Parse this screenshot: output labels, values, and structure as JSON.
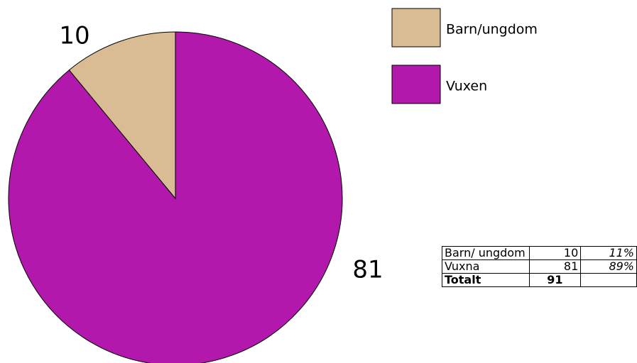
{
  "chart_data": {
    "type": "pie",
    "categories": [
      "Barn/ungdom",
      "Vuxen"
    ],
    "values": [
      10,
      81
    ],
    "colors": [
      "#d9bc94",
      "#b118ab"
    ]
  },
  "table": {
    "rows": [
      [
        "Barn/ ungdom",
        10,
        "11%"
      ],
      [
        "Vuxna",
        81,
        "89%"
      ],
      [
        "Totalt",
        91
      ]
    ]
  }
}
